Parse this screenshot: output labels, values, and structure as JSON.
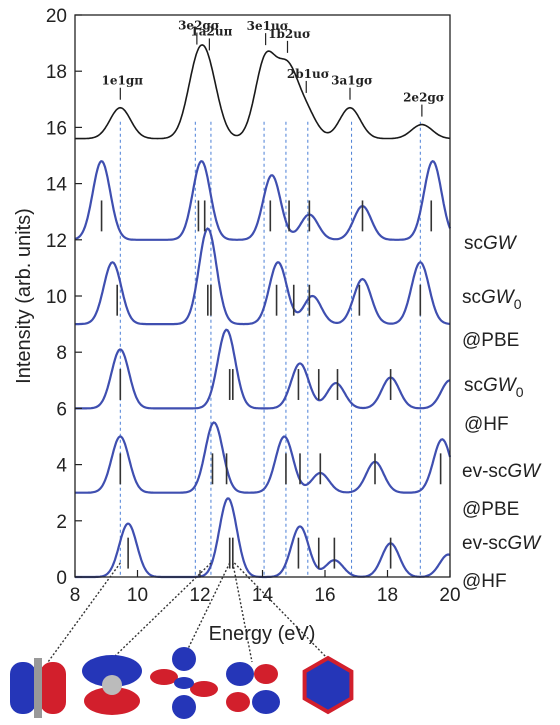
{
  "chart_data": {
    "type": "line",
    "xlabel": "Energy (eV)",
    "ylabel": "Intensity (arb. units)",
    "xlim": [
      8,
      20
    ],
    "ylim": [
      0,
      20
    ],
    "x_ticks": [
      "8",
      "10",
      "12",
      "14",
      "16",
      "18",
      "20"
    ],
    "y_ticks": [
      "0",
      "2",
      "4",
      "6",
      "8",
      "10",
      "12",
      "14",
      "16",
      "18",
      "20"
    ],
    "grid": false,
    "colors": {
      "experiment": "#1a1a1a",
      "theory": "#3f4fb0",
      "reference": "#4a7fd6",
      "sticks": "#333333"
    },
    "experiment": {
      "baseline": 15.6,
      "peaks": [
        {
          "label": "1e1gπ",
          "energy": 9.45,
          "intensity": 1.1
        },
        {
          "label": "3e2gσ",
          "energy": 11.9,
          "intensity": 2.2
        },
        {
          "label": "1a2uπ",
          "energy": 12.3,
          "intensity": 1.8
        },
        {
          "label": "3e1uσ",
          "energy": 14.1,
          "intensity": 2.8
        },
        {
          "label": "1b2uσ",
          "energy": 14.8,
          "intensity": 2.3
        },
        {
          "label": "2b1uσ",
          "energy": 15.4,
          "intensity": 0.9
        },
        {
          "label": "3a1gσ",
          "energy": 16.8,
          "intensity": 1.1
        },
        {
          "label": "2e2gσ",
          "energy": 19.1,
          "intensity": 0.5
        }
      ]
    },
    "reference_lines": [
      9.45,
      11.85,
      12.35,
      14.05,
      14.75,
      15.45,
      16.85,
      19.05
    ],
    "series": [
      {
        "name": "scGW",
        "baseline": 12,
        "peaks": [
          {
            "energy": 8.85,
            "intensity": 2.8
          },
          {
            "energy": 12.05,
            "intensity": 2.8
          },
          {
            "energy": 14.3,
            "intensity": 2.3
          },
          {
            "energy": 15.5,
            "intensity": 0.9
          },
          {
            "energy": 17.2,
            "intensity": 1.2
          },
          {
            "energy": 19.45,
            "intensity": 2.8
          }
        ],
        "sticks": [
          8.85,
          11.95,
          12.15,
          14.25,
          14.85,
          15.5,
          17.2,
          19.4
        ]
      },
      {
        "name": "scGW0@PBE",
        "baseline": 9,
        "peaks": [
          {
            "energy": 9.2,
            "intensity": 2.2
          },
          {
            "energy": 12.25,
            "intensity": 3.4
          },
          {
            "energy": 14.5,
            "intensity": 2.2
          },
          {
            "energy": 15.6,
            "intensity": 1.0
          },
          {
            "energy": 17.2,
            "intensity": 1.6
          },
          {
            "energy": 19.05,
            "intensity": 2.2
          }
        ],
        "sticks": [
          9.35,
          12.25,
          12.35,
          14.45,
          15.0,
          15.5,
          17.1,
          19.05
        ]
      },
      {
        "name": "scGW0@HF",
        "baseline": 6,
        "peaks": [
          {
            "energy": 9.45,
            "intensity": 2.1
          },
          {
            "energy": 12.85,
            "intensity": 2.8
          },
          {
            "energy": 15.2,
            "intensity": 1.6
          },
          {
            "energy": 16.35,
            "intensity": 0.9
          },
          {
            "energy": 18.1,
            "intensity": 1.1
          },
          {
            "energy": 20.0,
            "intensity": 1.0
          }
        ],
        "sticks": [
          9.45,
          12.95,
          13.05,
          15.15,
          15.8,
          16.4,
          18.1
        ]
      },
      {
        "name": "ev-scGW@PBE",
        "baseline": 3,
        "peaks": [
          {
            "energy": 9.45,
            "intensity": 2.0
          },
          {
            "energy": 12.45,
            "intensity": 2.5
          },
          {
            "energy": 14.7,
            "intensity": 2.0
          },
          {
            "energy": 15.85,
            "intensity": 0.7
          },
          {
            "energy": 17.6,
            "intensity": 1.1
          },
          {
            "energy": 19.75,
            "intensity": 1.9
          }
        ],
        "sticks": [
          9.45,
          12.4,
          12.85,
          14.75,
          15.2,
          15.85,
          17.6,
          19.7
        ]
      },
      {
        "name": "ev-scGW@HF",
        "baseline": 0,
        "peaks": [
          {
            "energy": 9.7,
            "intensity": 1.9
          },
          {
            "energy": 12.9,
            "intensity": 2.8
          },
          {
            "energy": 15.2,
            "intensity": 1.8
          },
          {
            "energy": 16.3,
            "intensity": 0.6
          },
          {
            "energy": 18.1,
            "intensity": 1.2
          },
          {
            "energy": 19.95,
            "intensity": 0.8
          }
        ],
        "sticks": [
          9.7,
          12.95,
          13.05,
          15.15,
          15.8,
          16.3,
          18.1
        ]
      }
    ],
    "method_labels": [
      {
        "main": "sc",
        "italic": "GW",
        "sub": "",
        "suffix": ""
      },
      {
        "main": "sc",
        "italic": "GW",
        "sub": "0",
        "suffix": "@PBE"
      },
      {
        "main": "sc",
        "italic": "GW",
        "sub": "0",
        "suffix": "@HF"
      },
      {
        "main": "ev-sc",
        "italic": "GW",
        "sub": "",
        "suffix": "@PBE"
      },
      {
        "main": "ev-sc",
        "italic": "GW",
        "sub": "",
        "suffix": "@HF"
      }
    ],
    "orbital_images": [
      "1e1g-orbital",
      "3e2g-orbital",
      "1a2u-orbital",
      "3e1u-orbital",
      "1b2u-orbital"
    ]
  }
}
